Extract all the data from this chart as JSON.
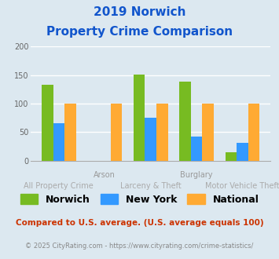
{
  "title_line1": "2019 Norwich",
  "title_line2": "Property Crime Comparison",
  "categories": [
    "All Property Crime",
    "Arson",
    "Larceny & Theft",
    "Burglary",
    "Motor Vehicle Theft"
  ],
  "series": {
    "Norwich": [
      133,
      null,
      151,
      138,
      15
    ],
    "New York": [
      66,
      null,
      75,
      42,
      31
    ],
    "National": [
      100,
      100,
      100,
      100,
      100
    ]
  },
  "bar_colors": {
    "Norwich": "#77bb22",
    "New York": "#3399ff",
    "National": "#ffaa33"
  },
  "ylim": [
    0,
    200
  ],
  "yticks": [
    0,
    50,
    100,
    150,
    200
  ],
  "xlabel_top": [
    "",
    "Arson",
    "",
    "Burglary",
    ""
  ],
  "xlabel_bottom": [
    "All Property Crime",
    "",
    "Larceny & Theft",
    "",
    "Motor Vehicle Theft"
  ],
  "legend_labels": [
    "Norwich",
    "New York",
    "National"
  ],
  "footnote1": "Compared to U.S. average. (U.S. average equals 100)",
  "footnote2": "© 2025 CityRating.com - https://www.cityrating.com/crime-statistics/",
  "fig_bg_color": "#dce8f0",
  "plot_bg_color": "#dce8f0",
  "title_color": "#1155cc",
  "xlabel_top_color": "#999999",
  "xlabel_bottom_color": "#aaaaaa",
  "footnote1_color": "#cc3300",
  "footnote2_color": "#888888"
}
